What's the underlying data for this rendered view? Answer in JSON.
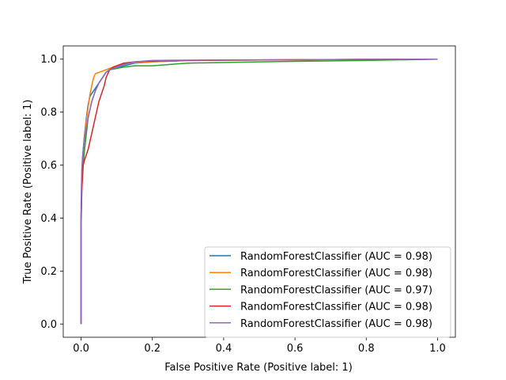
{
  "chart_data": {
    "type": "line",
    "title": "",
    "xlabel": "False Positive Rate (Positive label: 1)",
    "ylabel": "True Positive Rate (Positive label: 1)",
    "xlim": [
      -0.05,
      1.05
    ],
    "ylim": [
      -0.05,
      1.05
    ],
    "xticks": [
      "0.0",
      "0.2",
      "0.4",
      "0.6",
      "0.8",
      "1.0"
    ],
    "yticks": [
      "0.0",
      "0.2",
      "0.4",
      "0.6",
      "0.8",
      "1.0"
    ],
    "grid": false,
    "legend_position": "lower-right",
    "series": [
      {
        "name": "RandomForestClassifier (AUC = 0.98)",
        "color": "#1f77b4",
        "x": [
          0.0,
          0.0,
          0.002,
          0.004,
          0.006,
          0.01,
          0.015,
          0.02,
          0.025,
          0.03,
          0.04,
          0.05,
          0.06,
          0.07,
          0.08,
          0.1,
          0.12,
          0.15,
          0.2,
          0.3,
          0.5,
          0.8,
          1.0
        ],
        "y": [
          0.0,
          0.4,
          0.55,
          0.62,
          0.66,
          0.72,
          0.78,
          0.83,
          0.86,
          0.87,
          0.89,
          0.91,
          0.93,
          0.95,
          0.96,
          0.965,
          0.975,
          0.985,
          0.99,
          0.995,
          0.997,
          0.999,
          1.0
        ]
      },
      {
        "name": "RandomForestClassifier (AUC = 0.98)",
        "color": "#ff7f0e",
        "x": [
          0.0,
          0.0,
          0.002,
          0.005,
          0.008,
          0.012,
          0.018,
          0.024,
          0.03,
          0.035,
          0.04,
          0.05,
          0.06,
          0.07,
          0.08,
          0.1,
          0.13,
          0.2,
          0.3,
          0.5,
          0.8,
          1.0
        ],
        "y": [
          0.0,
          0.4,
          0.56,
          0.63,
          0.68,
          0.74,
          0.8,
          0.86,
          0.9,
          0.93,
          0.945,
          0.95,
          0.955,
          0.96,
          0.965,
          0.975,
          0.985,
          0.99,
          0.995,
          0.997,
          0.999,
          1.0
        ]
      },
      {
        "name": "RandomForestClassifier (AUC = 0.97)",
        "color": "#2ca02c",
        "x": [
          0.0,
          0.0,
          0.003,
          0.006,
          0.01,
          0.015,
          0.02,
          0.03,
          0.04,
          0.05,
          0.06,
          0.07,
          0.08,
          0.1,
          0.12,
          0.15,
          0.2,
          0.25,
          0.3,
          0.5,
          0.8,
          1.0
        ],
        "y": [
          0.0,
          0.4,
          0.55,
          0.6,
          0.66,
          0.72,
          0.78,
          0.84,
          0.88,
          0.91,
          0.93,
          0.95,
          0.96,
          0.965,
          0.97,
          0.975,
          0.975,
          0.98,
          0.985,
          0.99,
          0.995,
          1.0
        ]
      },
      {
        "name": "RandomForestClassifier (AUC = 0.98)",
        "color": "#d62728",
        "x": [
          0.0,
          0.0,
          0.002,
          0.004,
          0.006,
          0.01,
          0.02,
          0.03,
          0.04,
          0.05,
          0.06,
          0.065,
          0.07,
          0.08,
          0.09,
          0.1,
          0.12,
          0.15,
          0.2,
          0.3,
          0.5,
          0.8,
          1.0
        ],
        "y": [
          0.0,
          0.35,
          0.5,
          0.55,
          0.6,
          0.62,
          0.66,
          0.72,
          0.78,
          0.84,
          0.88,
          0.9,
          0.93,
          0.96,
          0.97,
          0.975,
          0.985,
          0.99,
          0.993,
          0.995,
          0.997,
          0.999,
          1.0
        ]
      },
      {
        "name": "RandomForestClassifier (AUC = 0.98)",
        "color": "#9467bd",
        "x": [
          0.0,
          0.0,
          0.002,
          0.004,
          0.008,
          0.012,
          0.02,
          0.03,
          0.04,
          0.05,
          0.06,
          0.07,
          0.08,
          0.1,
          0.12,
          0.15,
          0.2,
          0.25,
          0.4,
          0.6,
          0.8,
          1.0
        ],
        "y": [
          0.0,
          0.45,
          0.58,
          0.63,
          0.68,
          0.72,
          0.78,
          0.84,
          0.88,
          0.91,
          0.93,
          0.95,
          0.96,
          0.97,
          0.98,
          0.99,
          0.995,
          0.996,
          0.997,
          0.998,
          0.999,
          1.0
        ]
      }
    ]
  }
}
